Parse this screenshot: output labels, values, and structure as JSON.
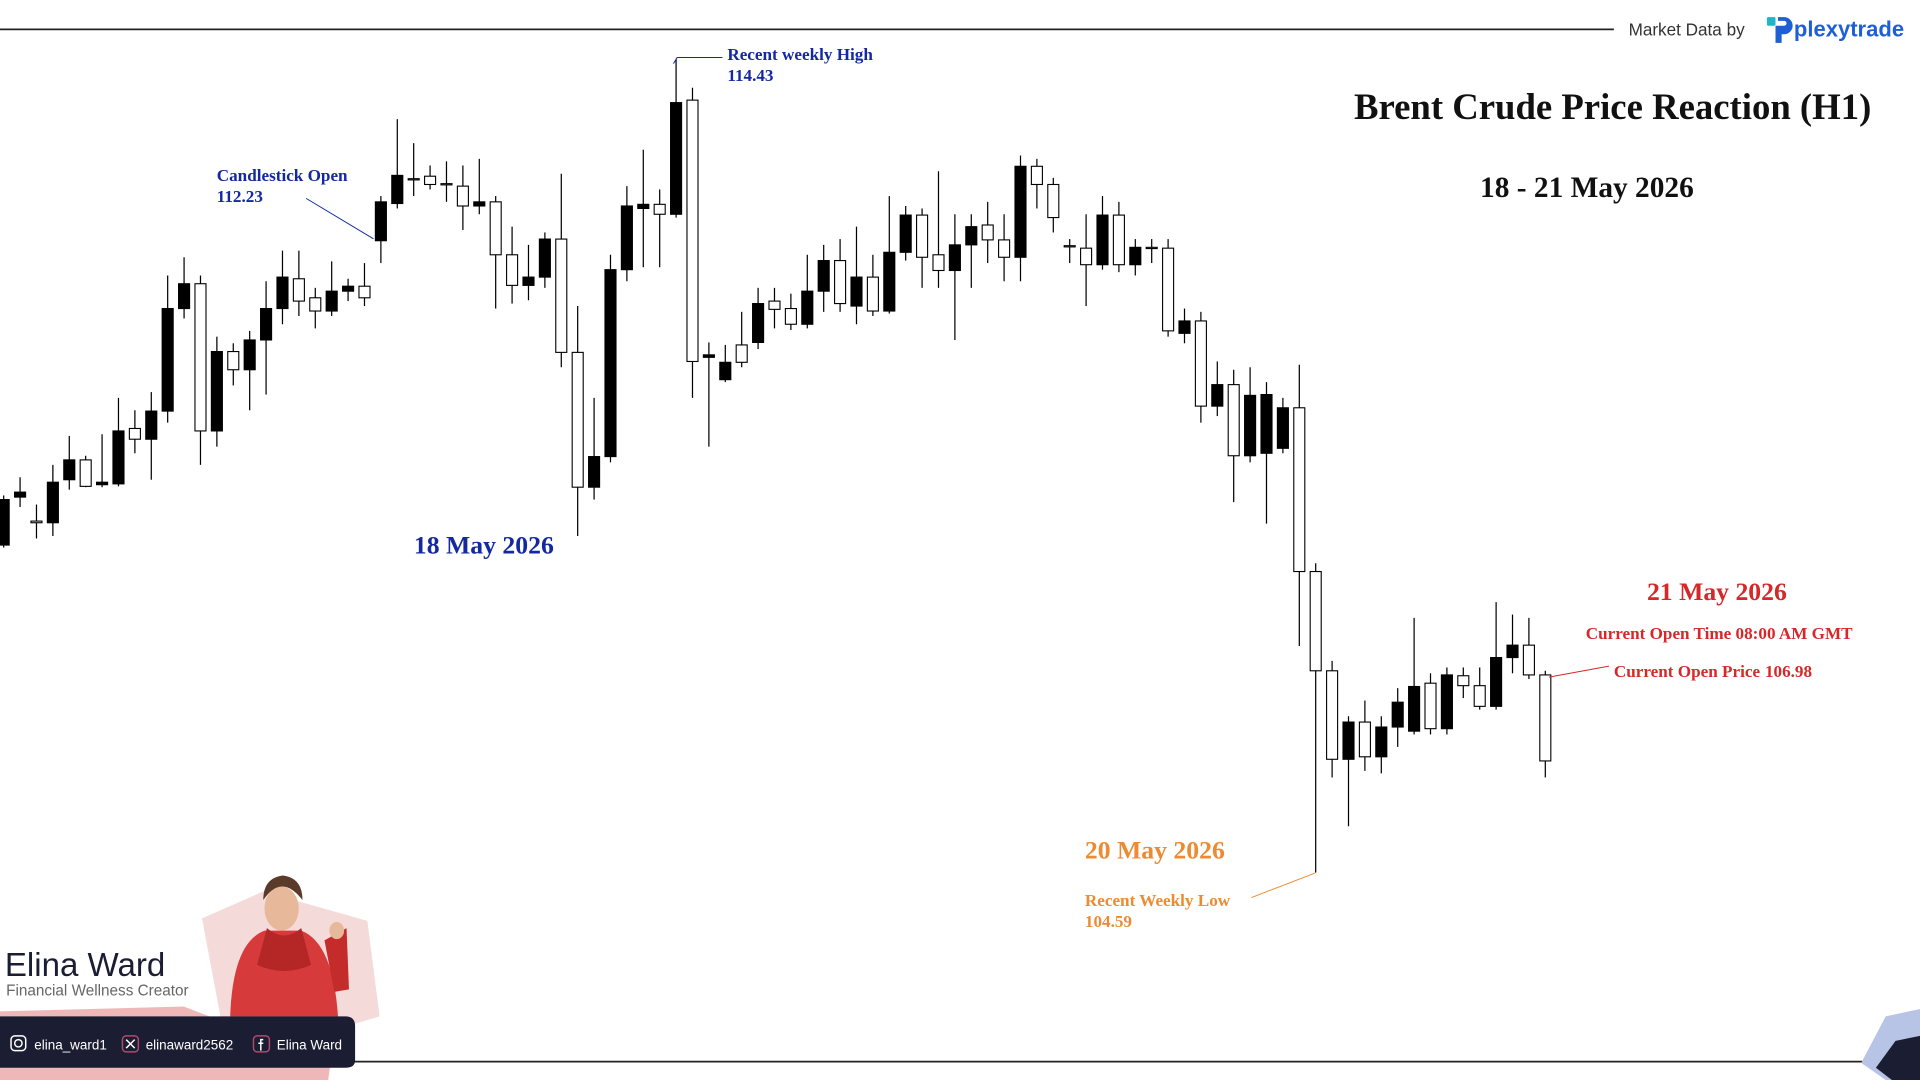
{
  "chart_data": {
    "type": "candlestick",
    "title": "Brent Crude Price Reaction (H1)",
    "subtitle": "18 - 21 May 2026",
    "up_color": "#000000",
    "down_color": "#ffffff",
    "wick_color": "#000000",
    "ylim": [
      103,
      115
    ],
    "open": [
      108.55,
      109.13,
      108.84,
      108.82,
      109.34,
      109.58,
      109.28,
      109.29,
      109.96,
      109.83,
      110.17,
      111.41,
      111.71,
      109.93,
      110.89,
      110.67,
      111.03,
      111.41,
      111.77,
      111.54,
      111.38,
      111.62,
      111.68,
      112.23,
      112.68,
      112.98,
      113.01,
      112.92,
      112.89,
      112.65,
      112.7,
      112.06,
      111.69,
      111.79,
      112.25,
      110.88,
      109.25,
      109.62,
      111.88,
      112.62,
      112.67,
      112.55,
      113.93,
      110.82,
      110.55,
      110.97,
      111.0,
      111.5,
      111.41,
      111.22,
      111.62,
      111.99,
      111.44,
      111.79,
      111.38,
      112.09,
      112.54,
      112.06,
      111.87,
      112.18,
      112.42,
      112.24,
      112.03,
      113.13,
      112.91,
      112.17,
      112.14,
      111.94,
      112.54,
      111.94,
      112.15,
      112.14,
      111.11,
      111.26,
      110.23,
      110.49,
      109.63,
      109.66,
      109.72,
      110.21,
      108.23,
      107.03,
      105.96,
      106.41,
      105.99,
      106.35,
      106.3,
      106.88,
      106.33,
      106.97,
      106.85,
      106.6,
      107.19,
      107.34,
      106.98
    ],
    "high": [
      109.15,
      109.37,
      109.04,
      109.52,
      109.87,
      109.63,
      109.89,
      110.33,
      110.18,
      110.4,
      111.81,
      112.03,
      111.81,
      111.07,
      110.99,
      111.14,
      111.74,
      112.11,
      112.11,
      111.66,
      111.98,
      111.77,
      111.96,
      112.77,
      113.7,
      113.41,
      113.14,
      113.19,
      113.14,
      113.22,
      112.77,
      112.4,
      112.18,
      112.33,
      113.04,
      111.44,
      110.33,
      112.06,
      112.89,
      113.33,
      112.85,
      114.43,
      114.08,
      111.0,
      110.97,
      111.37,
      111.66,
      111.66,
      111.59,
      112.06,
      112.18,
      112.25,
      112.4,
      112.06,
      112.77,
      112.65,
      112.62,
      113.07,
      112.55,
      112.55,
      112.7,
      112.55,
      113.26,
      113.22,
      112.99,
      112.25,
      112.55,
      112.77,
      112.7,
      112.25,
      112.25,
      112.25,
      111.41,
      111.37,
      110.77,
      110.67,
      110.7,
      110.52,
      110.33,
      110.73,
      108.33,
      107.15,
      106.48,
      106.67,
      106.48,
      106.82,
      107.67,
      107.0,
      107.07,
      107.07,
      107.07,
      107.86,
      107.71,
      107.67,
      107.03
    ],
    "low": [
      108.52,
      109.01,
      108.63,
      108.66,
      109.22,
      109.25,
      109.25,
      109.26,
      109.66,
      109.34,
      110.03,
      111.29,
      109.52,
      109.74,
      110.48,
      110.18,
      110.37,
      111.22,
      111.32,
      111.17,
      111.32,
      111.5,
      111.44,
      111.96,
      112.62,
      112.77,
      112.85,
      112.7,
      112.36,
      112.55,
      111.41,
      111.47,
      111.51,
      111.66,
      110.7,
      108.66,
      109.1,
      109.55,
      111.74,
      111.91,
      111.91,
      112.51,
      110.33,
      109.74,
      110.52,
      110.7,
      110.92,
      111.17,
      111.15,
      111.17,
      111.37,
      111.37,
      111.22,
      111.32,
      111.35,
      111.99,
      111.66,
      111.66,
      111.03,
      111.66,
      111.96,
      111.74,
      111.74,
      112.62,
      112.33,
      111.96,
      111.44,
      111.88,
      111.85,
      111.81,
      111.96,
      111.07,
      110.99,
      110.03,
      110.11,
      109.07,
      109.55,
      108.81,
      109.66,
      107.33,
      104.59,
      105.74,
      105.15,
      105.82,
      105.79,
      106.11,
      106.26,
      106.26,
      106.26,
      106.7,
      106.56,
      106.56,
      107.0,
      106.93,
      105.74
    ],
    "close": [
      109.1,
      109.19,
      108.82,
      109.31,
      109.58,
      109.26,
      109.31,
      109.93,
      109.83,
      110.17,
      111.41,
      111.71,
      109.93,
      110.89,
      110.67,
      111.03,
      111.41,
      111.79,
      111.5,
      111.38,
      111.62,
      111.68,
      111.54,
      112.7,
      113.02,
      112.98,
      112.91,
      112.92,
      112.65,
      112.7,
      112.06,
      111.69,
      111.79,
      112.25,
      110.88,
      109.25,
      109.62,
      111.88,
      112.65,
      112.67,
      112.55,
      113.9,
      110.77,
      110.85,
      110.76,
      110.76,
      111.47,
      111.4,
      111.22,
      111.62,
      111.99,
      111.47,
      111.79,
      111.38,
      112.09,
      112.54,
      112.03,
      111.87,
      112.18,
      112.4,
      112.24,
      112.03,
      113.13,
      112.91,
      112.51,
      112.17,
      111.94,
      112.54,
      111.94,
      112.15,
      112.14,
      111.14,
      111.26,
      110.23,
      110.49,
      109.63,
      110.36,
      110.37,
      110.21,
      108.23,
      107.03,
      105.96,
      106.41,
      105.99,
      106.35,
      106.65,
      106.84,
      106.33,
      106.98,
      106.85,
      106.6,
      107.19,
      107.34,
      106.98,
      105.94
    ],
    "annotations": [
      {
        "text": "Candlestick Open",
        "value": 112.23,
        "color": "#1428a0"
      },
      {
        "text": "Recent weekly High",
        "value": 114.43,
        "color": "#1428a0"
      },
      {
        "text": "18 May 2026",
        "color": "#1428a0"
      },
      {
        "text": "20 May 2026",
        "color": "#ee8a2f"
      },
      {
        "text": "Recent Weekly Low",
        "value": 104.59,
        "color": "#ee8a2f"
      },
      {
        "text": "21 May 2026",
        "color": "#d62828"
      },
      {
        "text": "Current Open Time 08:00 AM GMT",
        "color": "#d62828"
      },
      {
        "text": "Current Open Price",
        "value": 106.98,
        "color": "#d62828"
      }
    ]
  },
  "header": {
    "source_label": "Market Data by",
    "brand": "plexytrade"
  },
  "creator": {
    "name": "Elina Ward",
    "role": "Financial Wellness Creator",
    "instagram": "elina_ward1",
    "x": "elinaward2562",
    "facebook": "Elina Ward"
  }
}
